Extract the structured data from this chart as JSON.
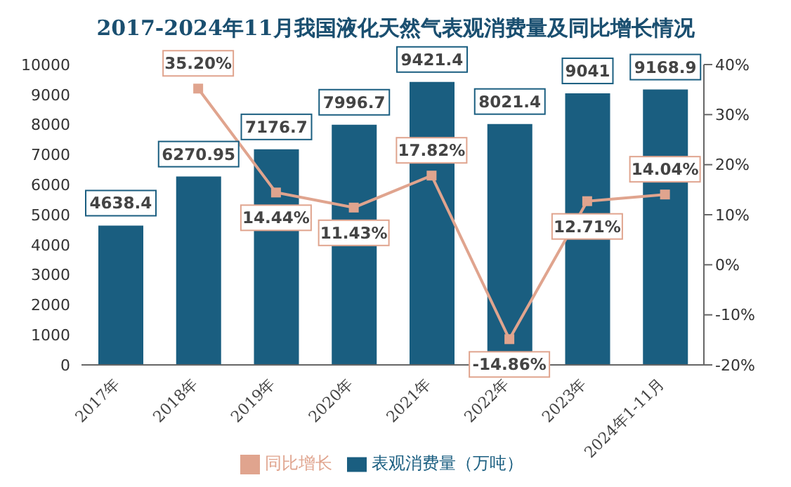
{
  "chart_data": {
    "type": "bar",
    "title": "2017-2024年11月我国液化天然气表观消费量及同比增长情况",
    "categories": [
      "2017年",
      "2018年",
      "2019年",
      "2020年",
      "2021年",
      "2022年",
      "2023年",
      "2024年1-11月"
    ],
    "series": [
      {
        "name": "表观消费量（万吨）",
        "color": "#1a5e80",
        "values": [
          4638.4,
          6270.95,
          7176.7,
          7996.7,
          9421.4,
          8021.4,
          9041,
          9168.9
        ],
        "value_labels": [
          "4638.4",
          "6270.95",
          "7176.7",
          "7996.7",
          "9421.4",
          "8021.4",
          "9041",
          "9168.9"
        ]
      },
      {
        "name": "同比增长",
        "type": "line",
        "axis": "y2",
        "color": "#e0a48e",
        "marker": "square",
        "values": [
          null,
          35.2,
          14.44,
          11.43,
          17.82,
          -14.86,
          12.71,
          14.04
        ],
        "value_labels": [
          null,
          "35.20%",
          "14.44%",
          "11.43%",
          "17.82%",
          "-14.86%",
          "12.71%",
          "14.04%"
        ]
      }
    ],
    "ylim": [
      0,
      10000
    ],
    "yticks": [
      0,
      1000,
      2000,
      3000,
      4000,
      5000,
      6000,
      7000,
      8000,
      9000,
      10000
    ],
    "y2lim": [
      -20,
      40
    ],
    "y2ticks": [
      {
        "value": -20,
        "label": "-20%"
      },
      {
        "value": -10,
        "label": "-10%"
      },
      {
        "value": 0,
        "label": "0%"
      },
      {
        "value": 10,
        "label": "10%"
      },
      {
        "value": 20,
        "label": "20%"
      },
      {
        "value": 30,
        "label": "30%"
      },
      {
        "value": 40,
        "label": "40%"
      }
    ],
    "grid": false,
    "legend": "bottom"
  }
}
